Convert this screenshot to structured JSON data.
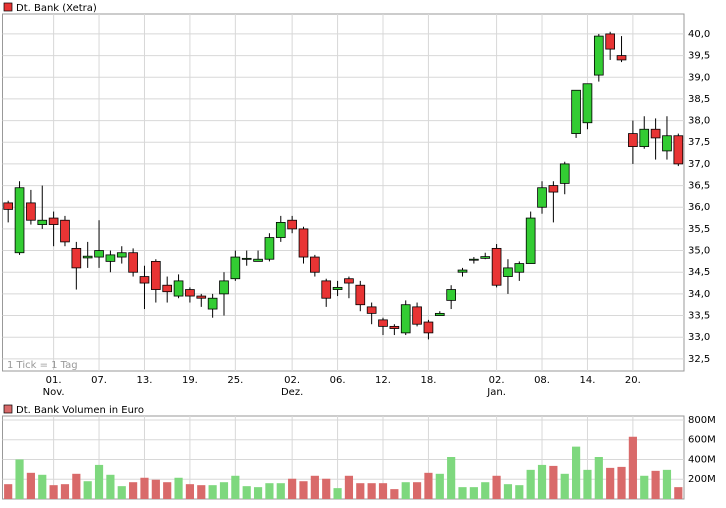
{
  "chart_data": [
    {
      "type": "candlestick",
      "title": "Dt. Bank (Xetra)",
      "annotation": "1 Tick = 1 Tag",
      "categories": [
        null,
        null,
        null,
        null,
        "01.",
        null,
        null,
        null,
        "07.",
        null,
        null,
        null,
        "13.",
        null,
        null,
        null,
        "19.",
        null,
        null,
        null,
        "25.",
        null,
        null,
        null,
        null,
        "02.",
        null,
        null,
        null,
        "06.",
        null,
        null,
        null,
        "12.",
        null,
        null,
        null,
        "18.",
        null,
        null,
        null,
        null,
        null,
        "02.",
        null,
        null,
        null,
        "08.",
        null,
        null,
        null,
        "14.",
        null,
        null,
        null,
        "20.",
        null,
        null,
        null,
        null
      ],
      "months": [
        null,
        null,
        null,
        null,
        "Nov.",
        null,
        null,
        null,
        null,
        null,
        null,
        null,
        null,
        null,
        null,
        null,
        null,
        null,
        null,
        null,
        null,
        null,
        null,
        null,
        null,
        "Dez.",
        null,
        null,
        null,
        null,
        null,
        null,
        null,
        null,
        null,
        null,
        null,
        null,
        null,
        null,
        null,
        null,
        null,
        "Jan.",
        null,
        null,
        null,
        null,
        null,
        null,
        null,
        null,
        null,
        null,
        null,
        null,
        null,
        null,
        null,
        null
      ],
      "open": [
        36.1,
        34.95,
        36.1,
        35.6,
        35.75,
        35.7,
        35.05,
        34.83,
        34.85,
        34.75,
        34.85,
        34.95,
        34.4,
        34.75,
        34.2,
        33.95,
        34.1,
        33.95,
        33.65,
        34.0,
        34.35,
        34.8,
        34.75,
        34.8,
        35.3,
        35.7,
        35.5,
        34.85,
        34.3,
        34.1,
        34.35,
        34.2,
        33.7,
        33.4,
        33.25,
        33.1,
        33.7,
        33.35,
        33.5,
        33.85,
        34.5,
        34.78,
        34.82,
        35.05,
        34.4,
        34.5,
        34.7,
        36.0,
        36.5,
        36.55,
        37.7,
        37.95,
        39.05,
        40.0,
        39.5,
        37.7,
        37.4,
        37.8,
        37.3,
        37.65
      ],
      "high": [
        36.15,
        36.6,
        36.4,
        36.5,
        35.9,
        35.8,
        35.2,
        35.2,
        35.7,
        35.0,
        35.1,
        35.05,
        34.65,
        34.8,
        34.4,
        34.45,
        34.15,
        34.0,
        34.0,
        34.5,
        35.0,
        35.0,
        35.0,
        35.4,
        35.8,
        35.8,
        35.55,
        34.9,
        34.35,
        34.3,
        34.4,
        34.3,
        33.8,
        33.45,
        33.3,
        33.85,
        33.8,
        33.4,
        33.6,
        34.2,
        34.6,
        34.85,
        34.95,
        35.15,
        34.8,
        34.75,
        35.9,
        36.6,
        36.6,
        37.05,
        38.7,
        38.85,
        40.0,
        40.05,
        39.95,
        38.0,
        38.1,
        38.05,
        38.1,
        37.7
      ],
      "low": [
        35.65,
        34.9,
        35.6,
        35.5,
        35.1,
        35.1,
        34.1,
        34.6,
        34.6,
        34.5,
        34.7,
        34.4,
        33.65,
        33.8,
        33.8,
        33.9,
        33.8,
        33.7,
        33.45,
        33.5,
        34.3,
        34.65,
        34.75,
        34.75,
        35.2,
        35.4,
        34.7,
        34.4,
        33.7,
        33.95,
        33.9,
        33.6,
        33.3,
        33.05,
        33.05,
        33.05,
        33.25,
        32.95,
        33.5,
        33.65,
        34.4,
        34.7,
        34.8,
        34.15,
        34.0,
        34.3,
        34.7,
        35.85,
        35.65,
        36.3,
        37.6,
        37.8,
        38.9,
        39.4,
        39.35,
        37.0,
        37.35,
        37.1,
        37.1,
        36.95
      ],
      "close": [
        35.95,
        36.45,
        35.7,
        35.7,
        35.6,
        35.2,
        34.6,
        34.87,
        35.0,
        34.9,
        34.95,
        34.5,
        34.25,
        34.1,
        34.05,
        34.3,
        33.95,
        33.9,
        33.9,
        34.3,
        34.85,
        34.82,
        34.8,
        35.3,
        35.65,
        35.5,
        34.85,
        34.5,
        33.9,
        34.15,
        34.25,
        33.75,
        33.55,
        33.25,
        33.2,
        33.75,
        33.3,
        33.1,
        33.55,
        34.1,
        34.55,
        34.8,
        34.86,
        34.2,
        34.6,
        34.7,
        35.75,
        36.45,
        36.35,
        37.0,
        38.7,
        38.85,
        39.95,
        39.65,
        39.4,
        37.4,
        37.8,
        37.6,
        37.65,
        37.0
      ],
      "up_color": "#33cc33",
      "down_color": "#e83434",
      "ylim": [
        32.22,
        40.46
      ],
      "yticks": [
        {
          "value": 32.5,
          "label": "32,5"
        },
        {
          "value": 33,
          "label": "33,0"
        },
        {
          "value": 33.5,
          "label": "33,5"
        },
        {
          "value": 34,
          "label": "34,0"
        },
        {
          "value": 34.5,
          "label": "34,5"
        },
        {
          "value": 35,
          "label": "35,0"
        },
        {
          "value": 35.5,
          "label": "35,5"
        },
        {
          "value": 36,
          "label": "36,0"
        },
        {
          "value": 36.5,
          "label": "36,5"
        },
        {
          "value": 37,
          "label": "37,0"
        },
        {
          "value": 37.5,
          "label": "37,5"
        },
        {
          "value": 38,
          "label": "38,0"
        },
        {
          "value": 38.5,
          "label": "38,5"
        },
        {
          "value": 39,
          "label": "39,0"
        },
        {
          "value": 39.5,
          "label": "39,5"
        },
        {
          "value": 40,
          "label": "40,0"
        }
      ],
      "grid": true
    },
    {
      "type": "bar",
      "title": "Dt. Bank Volumen in Euro",
      "values": [
        150,
        400,
        265,
        245,
        140,
        150,
        255,
        180,
        345,
        245,
        130,
        170,
        215,
        195,
        170,
        215,
        150,
        140,
        140,
        170,
        235,
        130,
        120,
        160,
        160,
        205,
        180,
        235,
        205,
        110,
        235,
        160,
        160,
        160,
        100,
        170,
        170,
        265,
        255,
        425,
        120,
        120,
        170,
        235,
        150,
        140,
        295,
        345,
        335,
        255,
        530,
        295,
        425,
        315,
        325,
        630,
        235,
        285,
        295,
        120
      ],
      "up_color": "#7ed87e",
      "down_color": "#d96a6a",
      "ylim": [
        0,
        840
      ],
      "yticks": [
        {
          "value": 200,
          "label": "200M"
        },
        {
          "value": 400,
          "label": "400M"
        },
        {
          "value": 600,
          "label": "600M"
        },
        {
          "value": 800,
          "label": "800M"
        }
      ],
      "grid": true
    }
  ]
}
